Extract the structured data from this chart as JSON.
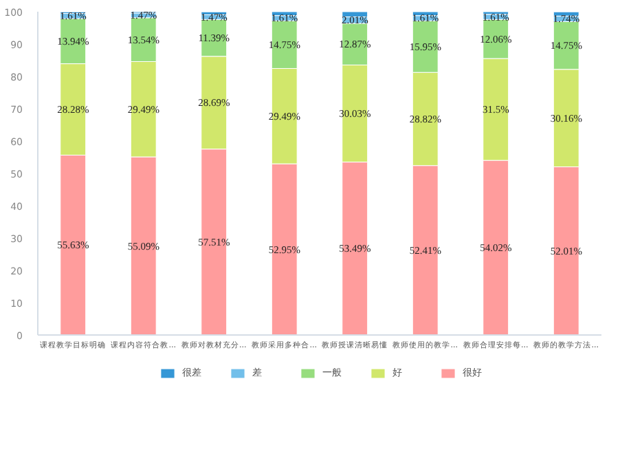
{
  "chart_data": {
    "type": "bar",
    "stacked": true,
    "categories": [
      "课程教学目标明确",
      "课程内容符合教...",
      "教师对教材充分...",
      "教师采用多种合...",
      "教师授课清晰易懂",
      "教师使用的教学...",
      "教师合理安排每...",
      "教师的教学方法..."
    ],
    "series": [
      {
        "name": "很好",
        "color": "#ff9c9c",
        "values": [
          55.63,
          55.09,
          57.51,
          52.95,
          53.49,
          52.41,
          54.02,
          52.01
        ],
        "value_labels": [
          "55.63%",
          "55.09%",
          "57.51%",
          "52.95%",
          "53.49%",
          "52.41%",
          "54.02%",
          "52.01%"
        ]
      },
      {
        "name": "好",
        "color": "#d1e76b",
        "values": [
          28.28,
          29.49,
          28.69,
          29.49,
          30.03,
          28.82,
          31.5,
          30.16
        ],
        "value_labels": [
          "28.28%",
          "29.49%",
          "28.69%",
          "29.49%",
          "30.03%",
          "28.82%",
          "31.5%",
          "30.16%"
        ]
      },
      {
        "name": "一般",
        "color": "#97dd7e",
        "values": [
          13.94,
          13.54,
          11.39,
          14.75,
          12.87,
          15.95,
          12.06,
          14.75
        ],
        "value_labels": [
          "13.94%",
          "13.54%",
          "11.39%",
          "14.75%",
          "12.87%",
          "15.95%",
          "12.06%",
          "14.75%"
        ]
      },
      {
        "name": "差",
        "color": "#72bfea",
        "values": [
          1.61,
          1.47,
          1.47,
          1.61,
          2.01,
          1.61,
          1.61,
          1.74
        ],
        "value_labels": [
          "1.61%",
          "1.47%",
          "1.47%",
          "1.61%",
          "2.01%",
          "1.61%",
          "1.61%",
          "1.74%"
        ]
      },
      {
        "name": "很差",
        "color": "#3597d6",
        "values": [
          0.5,
          0.4,
          0.9,
          1.2,
          1.6,
          1.2,
          0.8,
          1.3
        ]
      }
    ],
    "ylim": [
      0,
      100
    ],
    "yticks": [
      0,
      10,
      20,
      30,
      40,
      50,
      60,
      70,
      80,
      90,
      100
    ],
    "grid": false,
    "legend": "bottom"
  }
}
